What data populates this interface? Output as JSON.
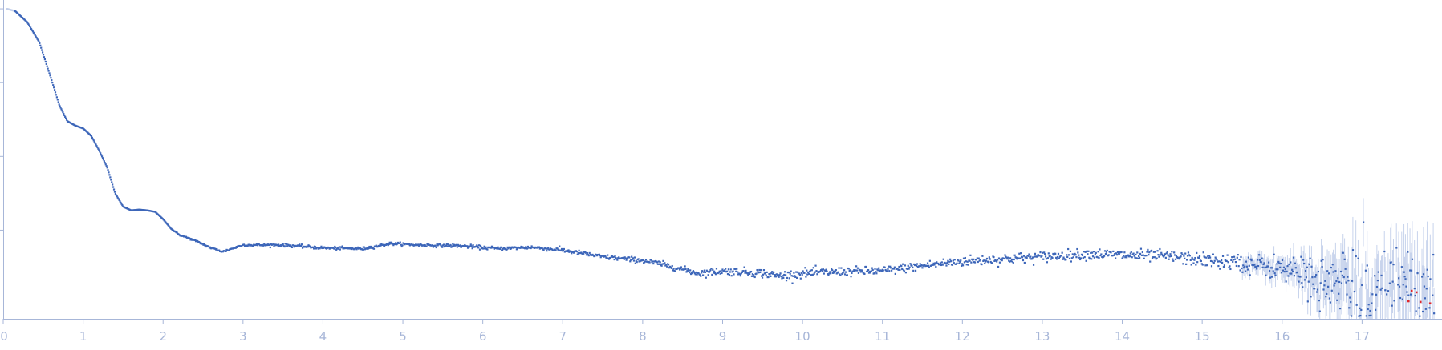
{
  "chart_data": {
    "type": "scatter",
    "title": "",
    "xlabel": "",
    "ylabel": "",
    "xlim": [
      0,
      17.95
    ],
    "x_ticks": [
      "0",
      "1",
      "2",
      "3",
      "4",
      "5",
      "6",
      "7",
      "8",
      "9",
      "10",
      "11",
      "12",
      "13",
      "14",
      "15",
      "16",
      "17"
    ],
    "y_scale": "log",
    "y_ticks_labeled": false,
    "ylim_log10": [
      -4.2,
      0.12
    ],
    "grid": false,
    "legend": "none",
    "colors": {
      "points": "#3d66b9",
      "outliers": "#e0262a",
      "error_bars": "#c7d3ec",
      "axis": "#a7b6d8"
    },
    "series": [
      {
        "x": [
          0.05,
          0.15,
          0.3,
          0.45,
          0.6,
          0.7,
          0.8,
          0.9,
          1.0,
          1.1,
          1.2,
          1.3,
          1.4,
          1.5,
          1.6,
          1.7,
          1.8,
          1.9,
          2.0,
          2.1,
          2.2,
          2.4,
          2.6,
          2.75,
          3.0,
          3.5,
          4.0,
          4.5,
          4.85,
          5.2,
          5.7,
          6.2,
          6.6,
          7.0,
          7.5,
          8.0,
          8.2,
          8.5,
          8.7,
          9.0,
          9.5,
          9.7,
          10.0,
          10.5,
          11.0,
          11.5,
          12.0,
          12.5,
          13.0,
          13.6,
          14.0,
          14.5,
          15.0,
          15.5,
          15.9,
          16.2,
          16.6,
          17.0,
          17.5,
          17.9
        ],
        "log10_y": [
          0.0,
          -0.03,
          -0.18,
          -0.45,
          -0.95,
          -1.3,
          -1.52,
          -1.58,
          -1.62,
          -1.72,
          -1.92,
          -2.15,
          -2.5,
          -2.68,
          -2.73,
          -2.72,
          -2.73,
          -2.75,
          -2.85,
          -2.98,
          -3.06,
          -3.14,
          -3.24,
          -3.29,
          -3.2,
          -3.2,
          -3.24,
          -3.25,
          -3.18,
          -3.2,
          -3.21,
          -3.25,
          -3.23,
          -3.27,
          -3.36,
          -3.41,
          -3.45,
          -3.53,
          -3.58,
          -3.55,
          -3.58,
          -3.62,
          -3.58,
          -3.56,
          -3.55,
          -3.48,
          -3.42,
          -3.39,
          -3.36,
          -3.32,
          -3.34,
          -3.35,
          -3.4,
          -3.45,
          -3.5,
          -3.58,
          -3.72,
          -3.88,
          -4.0,
          -3.85
        ],
        "noise_log10": [
          0.0,
          0.0,
          0.0,
          0.0,
          0.0,
          0.0,
          0.0,
          0.0,
          0.0,
          0.0,
          0.0,
          0.0,
          0.0,
          0.0,
          0.0,
          0.0,
          0.0,
          0.0,
          0.0,
          0.0,
          0.005,
          0.005,
          0.008,
          0.008,
          0.008,
          0.01,
          0.01,
          0.01,
          0.01,
          0.01,
          0.012,
          0.012,
          0.012,
          0.015,
          0.015,
          0.018,
          0.02,
          0.02,
          0.025,
          0.025,
          0.03,
          0.03,
          0.03,
          0.03,
          0.03,
          0.03,
          0.035,
          0.035,
          0.035,
          0.035,
          0.04,
          0.04,
          0.045,
          0.06,
          0.08,
          0.12,
          0.2,
          0.28,
          0.35,
          0.4
        ]
      }
    ],
    "outliers": [
      {
        "x": 17.62,
        "log10_y": -3.82
      },
      {
        "x": 17.68,
        "log10_y": -3.84
      },
      {
        "x": 17.73,
        "log10_y": -3.97
      },
      {
        "x": 17.85,
        "log10_y": -3.99
      },
      {
        "x": 17.58,
        "log10_y": -3.96
      }
    ]
  }
}
